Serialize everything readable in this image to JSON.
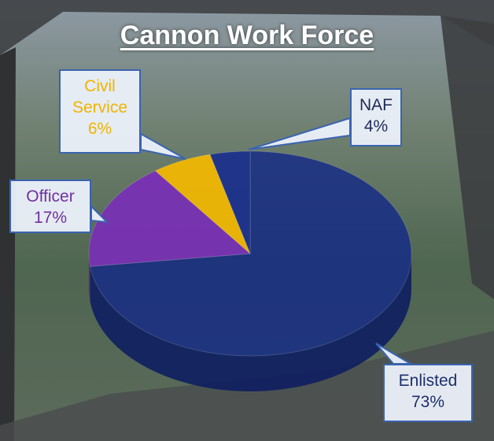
{
  "chart_data": {
    "type": "pie",
    "title": "Cannon Work Force",
    "categories": [
      "Enlisted",
      "Officer",
      "Civil Service",
      "NAF"
    ],
    "values": [
      73,
      17,
      6,
      4
    ],
    "value_labels": [
      "73%",
      "17%",
      "6%",
      "4%"
    ],
    "colors": [
      "#142a86",
      "#7a2fb6",
      "#f4b800",
      "#1a2f8c"
    ]
  }
}
